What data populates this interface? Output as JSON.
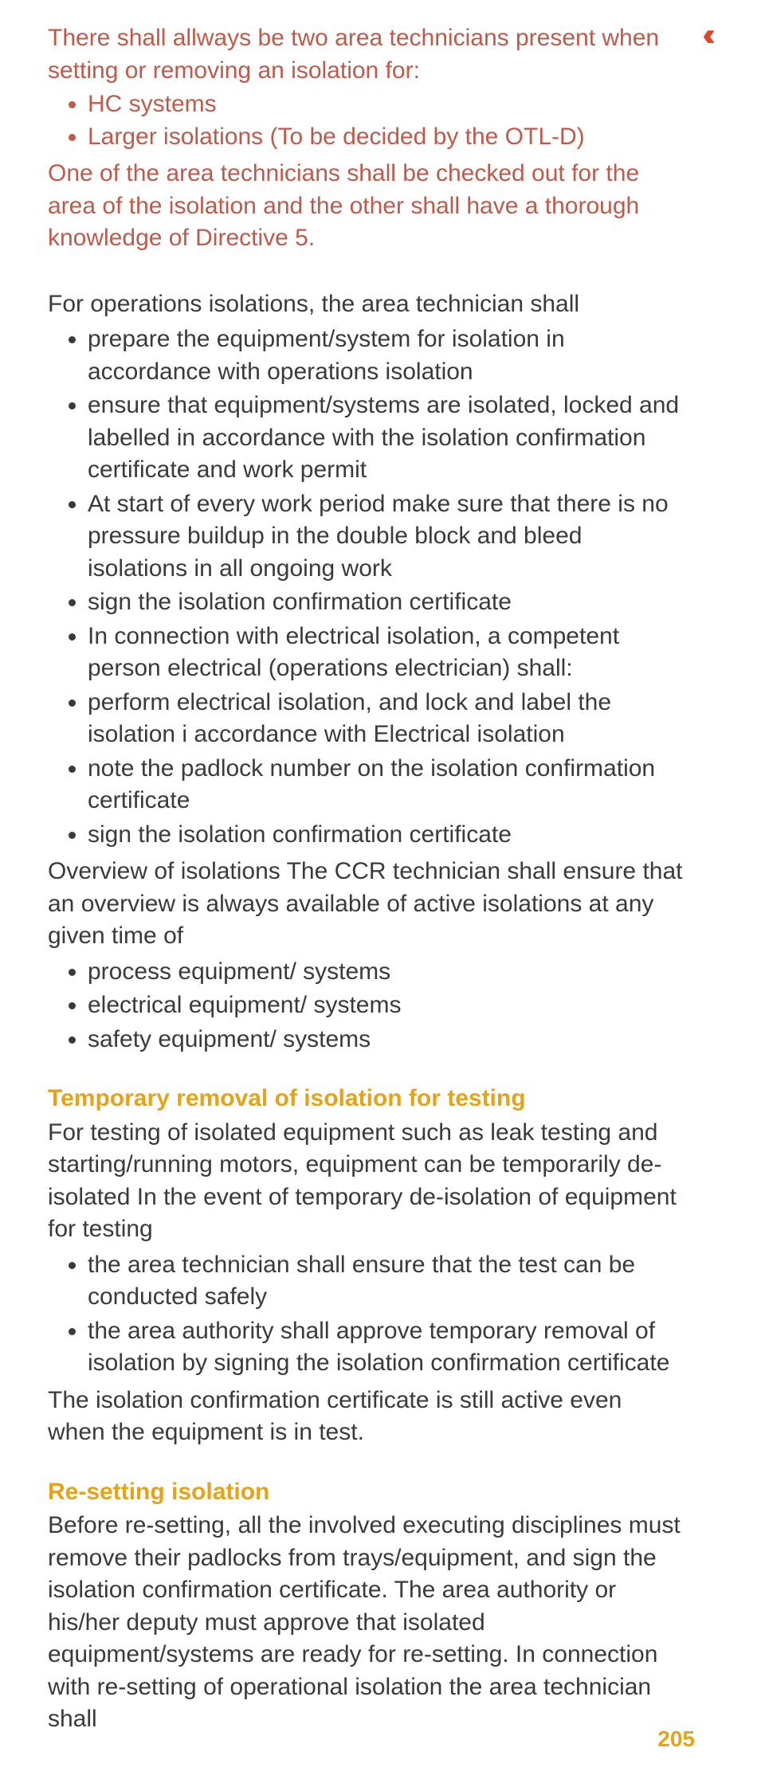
{
  "colors": {
    "red_text": "#bf5a4a",
    "body_text": "#3a3a3a",
    "heading": "#e6a317",
    "marker": "#d84a2a",
    "background": "#ffffff"
  },
  "typography": {
    "body_fontsize_pt": 22,
    "heading_fontsize_pt": 22,
    "line_height": 1.35
  },
  "marker_glyph": "‹‹",
  "red_intro": {
    "lead": "There shall allways be two area technicians present when setting or removing an isolation for:",
    "bullets": [
      "HC systems",
      "Larger isolations (To be decided by the OTL-D)"
    ],
    "tail": "One of the area technicians shall be checked out for the area of the isolation and the other shall have a thorough knowledge of Directive 5."
  },
  "operations": {
    "lead": "For operations isolations, the area technician shall",
    "bullets": [
      "prepare the equipment/system for isolation in accordance with operations isolation",
      "ensure that equipment/systems are isolated, locked and labelled in accordance with the isolation confirmation certificate and work permit",
      "At start of every work period make sure that there is no pressure buildup in the double block and bleed isolations in all ongoing work",
      "sign the isolation confirmation certificate",
      "In connection with electrical isolation, a competent person electrical (operations electrician) shall:",
      "perform electrical isolation, and lock and label the isolation i accordance with Electrical isolation",
      "note the padlock number on the isolation confirmation certificate",
      "sign the isolation confirmation certificate"
    ],
    "overview_text": "Overview of isolations The CCR technician shall ensure that an overview is always available of active isolations at any given time of",
    "overview_bullets": [
      "process equipment/ systems",
      "electrical equipment/ systems",
      "safety equipment/ systems"
    ]
  },
  "temp_removal": {
    "heading": "Temporary removal of isolation for testing",
    "p1": "For testing of isolated equipment such as leak testing and starting/running motors, equipment can be temporarily de-isolated In the event of temporary de-isolation of equipment for testing",
    "bullets": [
      "the area technician shall ensure that the test can be conducted safely",
      "the area authority shall approve temporary removal of isolation by signing the isolation confirmation certificate"
    ],
    "p2": "The isolation confirmation certificate is still active even  when the equipment is in test."
  },
  "resetting": {
    "heading": "Re-setting isolation",
    "body": "Before re-setting, all the involved executing disciplines must remove their padlocks from trays/equipment, and sign the isolation confirmation certificate. The area authority or his/her deputy must approve that isolated equipment/systems are ready for re-setting. In connection with re-setting of operational isolation the area technician shall"
  },
  "page_number": "205"
}
